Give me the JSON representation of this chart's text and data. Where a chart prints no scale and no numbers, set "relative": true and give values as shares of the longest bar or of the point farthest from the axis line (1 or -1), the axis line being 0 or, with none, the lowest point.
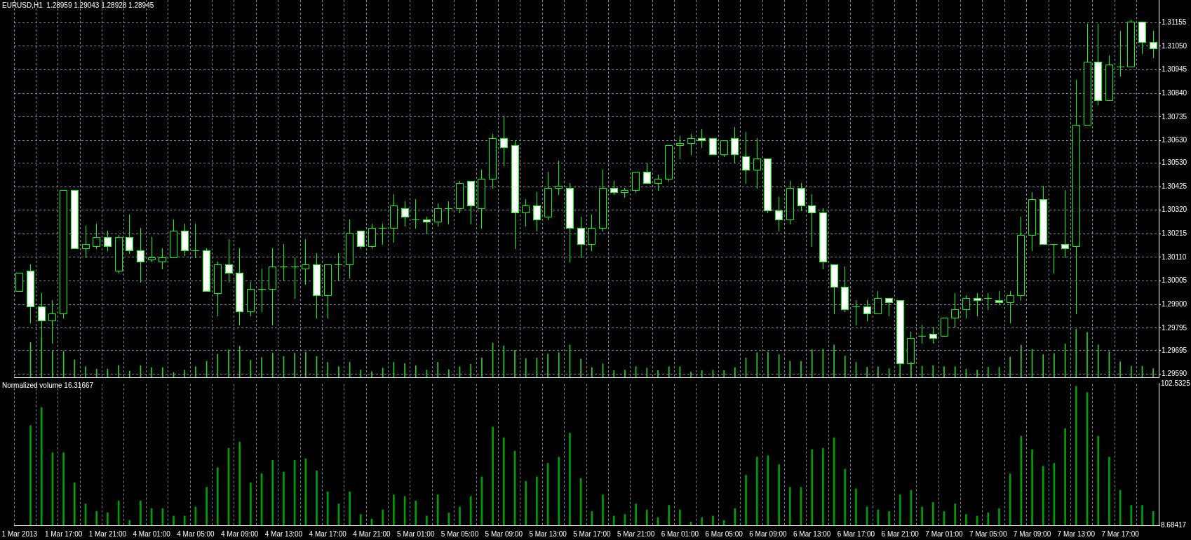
{
  "chart_data": [
    {
      "type": "candlestick",
      "title": "EURUSD,H1  1.28959 1.29043 1.28928 1.28945",
      "categories": [
        null,
        null,
        null,
        null,
        null,
        null,
        null,
        null,
        null,
        null,
        null,
        null,
        null,
        null,
        null,
        null,
        null,
        null,
        null,
        null,
        null,
        null,
        null,
        null,
        null,
        null,
        null,
        null,
        null,
        null,
        null,
        null,
        null,
        null,
        null,
        null,
        null,
        null,
        null,
        null,
        null,
        null,
        null,
        null,
        null,
        null,
        null,
        null,
        null,
        null,
        null,
        null,
        null,
        null,
        null,
        null,
        null,
        null,
        null,
        null,
        null,
        null,
        null,
        null,
        null,
        null,
        null,
        null,
        null,
        null,
        null,
        null,
        null,
        null,
        null,
        null,
        null,
        null,
        null,
        null,
        null,
        null,
        null,
        null,
        null,
        null,
        null,
        null,
        null,
        null,
        null,
        null,
        null,
        null,
        null,
        null,
        null,
        null,
        null,
        null,
        null,
        null,
        null,
        null
      ],
      "ohlc": [
        [
          1.2996,
          1.3004,
          1.2996,
          1.3004
        ],
        [
          1.3005,
          1.3008,
          1.2982,
          1.2989
        ],
        [
          1.2989,
          1.2995,
          1.2976,
          1.2983
        ],
        [
          1.2983,
          1.2992,
          1.2973,
          1.2986
        ],
        [
          1.2986,
          1.3041,
          1.2984,
          1.3041
        ],
        [
          1.3041,
          1.3041,
          1.3015,
          1.3015
        ],
        [
          1.3015,
          1.3025,
          1.3011,
          1.3017
        ],
        [
          1.3016,
          1.3026,
          1.3015,
          1.302
        ],
        [
          1.302,
          1.3023,
          1.3014,
          1.3016
        ],
        [
          1.3005,
          1.3021,
          1.3004,
          1.302
        ],
        [
          1.302,
          1.303,
          1.3013,
          1.3014
        ],
        [
          1.3014,
          1.3024,
          1.3,
          1.3009
        ],
        [
          1.301,
          1.302,
          1.3009,
          1.3011
        ],
        [
          1.3009,
          1.3015,
          1.3006,
          1.3011
        ],
        [
          1.3011,
          1.3028,
          1.3011,
          1.3023
        ],
        [
          1.3023,
          1.3026,
          1.3012,
          1.3014
        ],
        [
          1.3014,
          1.3026,
          1.3011,
          1.3014
        ],
        [
          1.3014,
          1.3015,
          1.2996,
          1.2996
        ],
        [
          1.2995,
          1.3009,
          1.2985,
          1.3008
        ],
        [
          1.3008,
          1.3019,
          1.3,
          1.3004
        ],
        [
          1.3004,
          1.3015,
          1.2981,
          1.2987
        ],
        [
          1.2987,
          1.3,
          1.2985,
          1.2997
        ],
        [
          1.2997,
          1.3006,
          1.2987,
          1.2997
        ],
        [
          1.2997,
          1.3015,
          1.2981,
          1.3007
        ],
        [
          1.3007,
          1.3017,
          1.3001,
          1.3007
        ],
        [
          1.3007,
          1.3011,
          1.2993,
          1.3007
        ],
        [
          1.3006,
          1.3019,
          1.2999,
          1.3008
        ],
        [
          1.3008,
          1.3013,
          1.2984,
          1.2994
        ],
        [
          1.2994,
          1.3008,
          1.2984,
          1.3008
        ],
        [
          1.3008,
          1.3013,
          1.3001,
          1.3008
        ],
        [
          1.3008,
          1.3028,
          1.3002,
          1.3022
        ],
        [
          1.3023,
          1.3023,
          1.3015,
          1.3016
        ],
        [
          1.3016,
          1.3026,
          1.3015,
          1.3024
        ],
        [
          1.3024,
          1.3026,
          1.3017,
          1.3024
        ],
        [
          1.3024,
          1.3039,
          1.3018,
          1.3034
        ],
        [
          1.3033,
          1.3036,
          1.3025,
          1.3029
        ],
        [
          1.3028,
          1.3037,
          1.3024,
          1.3028
        ],
        [
          1.3028,
          1.3029,
          1.3022,
          1.3027
        ],
        [
          1.3027,
          1.3035,
          1.3025,
          1.3033
        ],
        [
          1.3033,
          1.3036,
          1.3026,
          1.3033
        ],
        [
          1.3033,
          1.3045,
          1.3031,
          1.3044
        ],
        [
          1.3045,
          1.3045,
          1.3026,
          1.3034
        ],
        [
          1.3033,
          1.305,
          1.3024,
          1.3046
        ],
        [
          1.3046,
          1.3066,
          1.3042,
          1.3064
        ],
        [
          1.3064,
          1.3074,
          1.3052,
          1.306
        ],
        [
          1.3061,
          1.3063,
          1.3015,
          1.3031
        ],
        [
          1.3031,
          1.3037,
          1.3025,
          1.3034
        ],
        [
          1.3034,
          1.304,
          1.3023,
          1.3028
        ],
        [
          1.3029,
          1.3049,
          1.3028,
          1.3042
        ],
        [
          1.3042,
          1.3054,
          1.3039,
          1.3043
        ],
        [
          1.3042,
          1.3044,
          1.3009,
          1.3024
        ],
        [
          1.3024,
          1.3029,
          1.3011,
          1.3017
        ],
        [
          1.3017,
          1.303,
          1.3014,
          1.3024
        ],
        [
          1.3024,
          1.305,
          1.3023,
          1.3042
        ],
        [
          1.3042,
          1.3045,
          1.3039,
          1.304
        ],
        [
          1.304,
          1.3042,
          1.3038,
          1.3041
        ],
        [
          1.3041,
          1.3049,
          1.304,
          1.3049
        ],
        [
          1.3049,
          1.3053,
          1.3044,
          1.3044
        ],
        [
          1.3044,
          1.3048,
          1.3041,
          1.3046
        ],
        [
          1.3046,
          1.3061,
          1.3045,
          1.3061
        ],
        [
          1.3061,
          1.3065,
          1.3055,
          1.3062
        ],
        [
          1.3062,
          1.3066,
          1.3057,
          1.3064
        ],
        [
          1.3064,
          1.3068,
          1.306,
          1.3063
        ],
        [
          1.3064,
          1.3064,
          1.3057,
          1.3057
        ],
        [
          1.3057,
          1.3063,
          1.3056,
          1.3063
        ],
        [
          1.3064,
          1.3069,
          1.3053,
          1.3057
        ],
        [
          1.3056,
          1.3067,
          1.3044,
          1.305
        ],
        [
          1.305,
          1.3064,
          1.3042,
          1.3055
        ],
        [
          1.3055,
          1.3055,
          1.3031,
          1.3032
        ],
        [
          1.3032,
          1.3038,
          1.3023,
          1.3028
        ],
        [
          1.3028,
          1.3045,
          1.3026,
          1.3042
        ],
        [
          1.3042,
          1.3044,
          1.3032,
          1.3034
        ],
        [
          1.3034,
          1.3039,
          1.3016,
          1.3031
        ],
        [
          1.3031,
          1.3033,
          1.3006,
          1.3009
        ],
        [
          1.3008,
          1.3008,
          1.2986,
          1.2998
        ],
        [
          1.2998,
          1.3007,
          1.2987,
          1.2988
        ],
        [
          1.2989,
          1.2992,
          1.2981,
          1.2989
        ],
        [
          1.2989,
          1.2992,
          1.2983,
          1.2986
        ],
        [
          1.2986,
          1.2996,
          1.2986,
          1.2993
        ],
        [
          1.2993,
          1.2993,
          1.2985,
          1.2991
        ],
        [
          1.2992,
          1.2992,
          1.2964,
          1.2964
        ],
        [
          1.2964,
          1.2978,
          1.2964,
          1.2975
        ],
        [
          1.2976,
          1.2981,
          1.2973,
          1.2976
        ],
        [
          1.2977,
          1.298,
          1.2973,
          1.2975
        ],
        [
          1.2976,
          1.2984,
          1.2976,
          1.2984
        ],
        [
          1.2984,
          1.2995,
          1.298,
          1.2988
        ],
        [
          1.2988,
          1.2994,
          1.2984,
          1.2993
        ],
        [
          1.2993,
          1.2995,
          1.2985,
          1.2992
        ],
        [
          1.2993,
          1.2995,
          1.2988,
          1.2993
        ],
        [
          1.2992,
          1.2996,
          1.299,
          1.2991
        ],
        [
          1.2991,
          1.2996,
          1.2982,
          1.2994
        ],
        [
          1.2994,
          1.3029,
          1.2992,
          1.3021
        ],
        [
          1.3021,
          1.304,
          1.3014,
          1.3037
        ],
        [
          1.3037,
          1.3043,
          1.3017,
          1.3017
        ],
        [
          1.3017,
          1.3017,
          1.3004,
          1.3017
        ],
        [
          1.3017,
          1.3041,
          1.3011,
          1.3015
        ],
        [
          1.3016,
          1.309,
          1.2986,
          1.307
        ],
        [
          1.307,
          1.3115,
          1.307,
          1.3098
        ],
        [
          1.3098,
          1.3115,
          1.3079,
          1.3081
        ],
        [
          1.3081,
          1.3101,
          1.3081,
          1.3097
        ],
        [
          1.3096,
          1.3112,
          1.3092,
          1.3096
        ],
        [
          1.3096,
          1.3117,
          1.3096,
          1.3116
        ],
        [
          1.3116,
          1.3116,
          1.3102,
          1.3107
        ],
        [
          1.3107,
          1.3112,
          1.31,
          1.3104
        ]
      ],
      "color": "#00ff00",
      "colors": [
        "#000000",
        "#ffffff",
        "#ffffff",
        "#000000",
        "#000000",
        "#ffffff",
        "#000000",
        "#000000",
        "#ffffff",
        "#000000",
        "#ffffff",
        "#ffffff",
        "#000000",
        "#000000",
        "#000000",
        "#ffffff",
        "#00ff00",
        "#ffffff",
        "#000000",
        "#ffffff",
        "#ffffff",
        "#000000",
        "#00ff00",
        "#000000",
        "#00ff00",
        "#00ff00",
        "#000000",
        "#ffffff",
        "#000000",
        "#00ff00",
        "#000000",
        "#ffffff",
        "#000000",
        "#00ff00",
        "#000000",
        "#ffffff",
        "#00ff00",
        "#ffffff",
        "#000000",
        "#00ff00",
        "#000000",
        "#ffffff",
        "#000000",
        "#000000",
        "#ffffff",
        "#ffffff",
        "#000000",
        "#ffffff",
        "#000000",
        "#000000",
        "#ffffff",
        "#ffffff",
        "#000000",
        "#000000",
        "#ffffff",
        "#000000",
        "#000000",
        "#ffffff",
        "#000000",
        "#000000",
        "#000000",
        "#000000",
        "#ffffff",
        "#ffffff",
        "#000000",
        "#ffffff",
        "#ffffff",
        "#000000",
        "#ffffff",
        "#ffffff",
        "#000000",
        "#ffffff",
        "#ffffff",
        "#ffffff",
        "#ffffff",
        "#ffffff",
        "#00ff00",
        "#ffffff",
        "#000000",
        "#ffffff",
        "#ffffff",
        "#000000",
        "#00ff00",
        "#ffffff",
        "#000000",
        "#000000",
        "#000000",
        "#ffffff",
        "#00ff00",
        "#ffffff",
        "#000000",
        "#000000",
        "#000000",
        "#ffffff",
        "#00ff00",
        "#ffffff",
        "#000000",
        "#000000",
        "#ffffff",
        "#000000",
        "#00ff00",
        "#000000",
        "#ffffff",
        "#ffffff"
      ],
      "ylim": [
        1.29576,
        1.31256
      ],
      "yticks": [
        1.31155,
        {
          "value": 1.3105,
          "label": "1.31050"
        },
        1.30945,
        {
          "value": 1.3084,
          "label": "1.30840"
        },
        1.30735,
        {
          "value": 1.3063,
          "label": "1.30630"
        },
        {
          "value": 1.3053,
          "label": "1.30530"
        },
        1.30425,
        {
          "value": 1.3032,
          "label": "1.30320"
        },
        1.30215,
        {
          "value": 1.3011,
          "label": "1.30110"
        },
        1.30005,
        {
          "value": 1.299,
          "label": "1.29900"
        },
        1.29795,
        1.29695,
        {
          "value": 1.2959,
          "label": "1.29590"
        }
      ],
      "grid": true,
      "tick_labels": "y"
    },
    {
      "type": "bar",
      "categories": [
        null,
        null,
        null,
        null,
        null,
        null,
        null,
        null,
        null,
        null,
        null,
        null,
        null,
        null,
        null,
        null,
        null,
        null,
        null,
        null,
        null,
        null,
        null,
        null,
        null,
        null,
        null,
        null,
        null,
        null,
        null,
        null,
        null,
        null,
        null,
        null,
        null,
        null,
        null,
        null,
        null,
        null,
        null,
        null,
        null,
        null,
        null,
        null,
        null,
        null,
        null,
        null,
        null,
        null,
        null,
        null,
        null,
        null,
        null,
        null,
        null,
        null,
        null,
        null,
        null,
        null,
        null,
        null,
        null,
        null,
        null,
        null,
        null,
        null,
        null,
        null,
        null,
        null,
        null,
        null,
        null,
        null,
        null,
        null,
        null,
        null,
        null,
        null,
        null,
        null,
        null,
        null,
        null,
        null,
        null,
        null,
        null,
        null,
        null,
        null,
        null,
        null,
        null,
        null
      ],
      "values": [
        null,
        0.72,
        0.83,
        0.54,
        0.54,
        0.36,
        0.22,
        0.17,
        0.17,
        0.24,
        0.13,
        0.24,
        0.2,
        0.2,
        0.1,
        0.15,
        0.22,
        0.33,
        0.48,
        0.57,
        0.64,
        0.35,
        0.41,
        0.5,
        0.43,
        0.5,
        0.52,
        0.43,
        0.31,
        0.22,
        0.31,
        0.15,
        0.12,
        0.19,
        0.31,
        0.28,
        0.24,
        0.15,
        0.31,
        0.16,
        0.22,
        0.27,
        0.4,
        0.71,
        0.65,
        0.56,
        0.39,
        0.4,
        0.48,
        0.51,
        0.67,
        0.38,
        0.2,
        0.28,
        0.14,
        0.15,
        0.22,
        0.19,
        0.14,
        0.22,
        0.22,
        0.11,
        0.14,
        0.15,
        0.14,
        0.2,
        0.4,
        0.51,
        0.52,
        0.47,
        0.33,
        0.33,
        0.57,
        0.58,
        0.67,
        0.44,
        0.31,
        0.21,
        0.22,
        0.18,
        0.28,
        0.31,
        0.23,
        0.24,
        0.22,
        0.22,
        0.17,
        0.15,
        0.21,
        0.21,
        0.42,
        0.67,
        0.58,
        0.47,
        0.49,
        0.69,
        1,
        0.93,
        0.67,
        0.53,
        0.32,
        0.23,
        0.23,
        0.18
      ],
      "color": "#32cd32",
      "relative": true,
      "tick_labels": false
    },
    {
      "type": "bar",
      "title": "Normalized volume 16.31667",
      "categories": [
        "1 Mar 2013",
        null,
        null,
        null,
        "1 Mar 17:00",
        null,
        null,
        null,
        "1 Mar 21:00",
        null,
        null,
        null,
        "4 Mar 01:00",
        null,
        null,
        null,
        "4 Mar 05:00",
        null,
        null,
        null,
        "4 Mar 09:00",
        null,
        null,
        null,
        "4 Mar 13:00",
        null,
        null,
        null,
        "4 Mar 17:00",
        null,
        null,
        null,
        "4 Mar 21:00",
        null,
        null,
        null,
        "5 Mar 01:00",
        null,
        null,
        null,
        "5 Mar 05:00",
        null,
        null,
        null,
        "5 Mar 09:00",
        null,
        null,
        null,
        "5 Mar 13:00",
        null,
        null,
        null,
        "5 Mar 17:00",
        null,
        null,
        null,
        "5 Mar 21:00",
        null,
        null,
        null,
        "6 Mar 01:00",
        null,
        null,
        null,
        "6 Mar 05:00",
        null,
        null,
        null,
        "6 Mar 09:00",
        null,
        null,
        null,
        "6 Mar 13:00",
        null,
        null,
        null,
        "6 Mar 17:00",
        null,
        null,
        null,
        "6 Mar 21:00",
        null,
        null,
        null,
        "7 Mar 01:00",
        null,
        null,
        null,
        "7 Mar 05:00",
        null,
        null,
        null,
        "7 Mar 09:00",
        null,
        null,
        null,
        "7 Mar 13:00",
        null,
        null,
        null,
        "7 Mar 17:00",
        null,
        null,
        null
      ],
      "values": [
        null,
        75,
        87,
        57,
        57,
        37,
        23,
        18,
        17,
        25,
        12,
        25,
        20,
        20,
        15,
        15,
        21,
        34,
        47,
        60,
        64,
        37,
        43,
        52,
        44,
        52,
        53,
        45,
        31,
        23,
        31,
        16,
        13,
        19,
        29,
        28,
        25,
        15,
        29,
        17,
        21,
        28,
        41,
        74,
        67,
        58,
        38,
        41,
        50,
        54,
        70,
        40,
        18,
        29,
        15,
        16,
        23,
        19,
        14,
        22,
        19,
        11,
        14,
        15,
        12,
        20,
        42,
        54,
        55,
        49,
        34,
        34,
        59,
        60,
        67,
        46,
        33,
        21,
        19,
        18,
        29,
        32,
        21,
        24,
        18,
        23,
        16,
        15,
        17,
        20,
        43,
        68,
        59,
        48,
        50,
        73,
        101,
        97,
        68,
        54,
        32,
        22,
        22,
        18
      ],
      "color": "#00a000",
      "ylim": [
        8.68417,
        102.5325
      ],
      "yticks": [
        8.68417,
        102.5325
      ],
      "grid": "x"
    }
  ]
}
